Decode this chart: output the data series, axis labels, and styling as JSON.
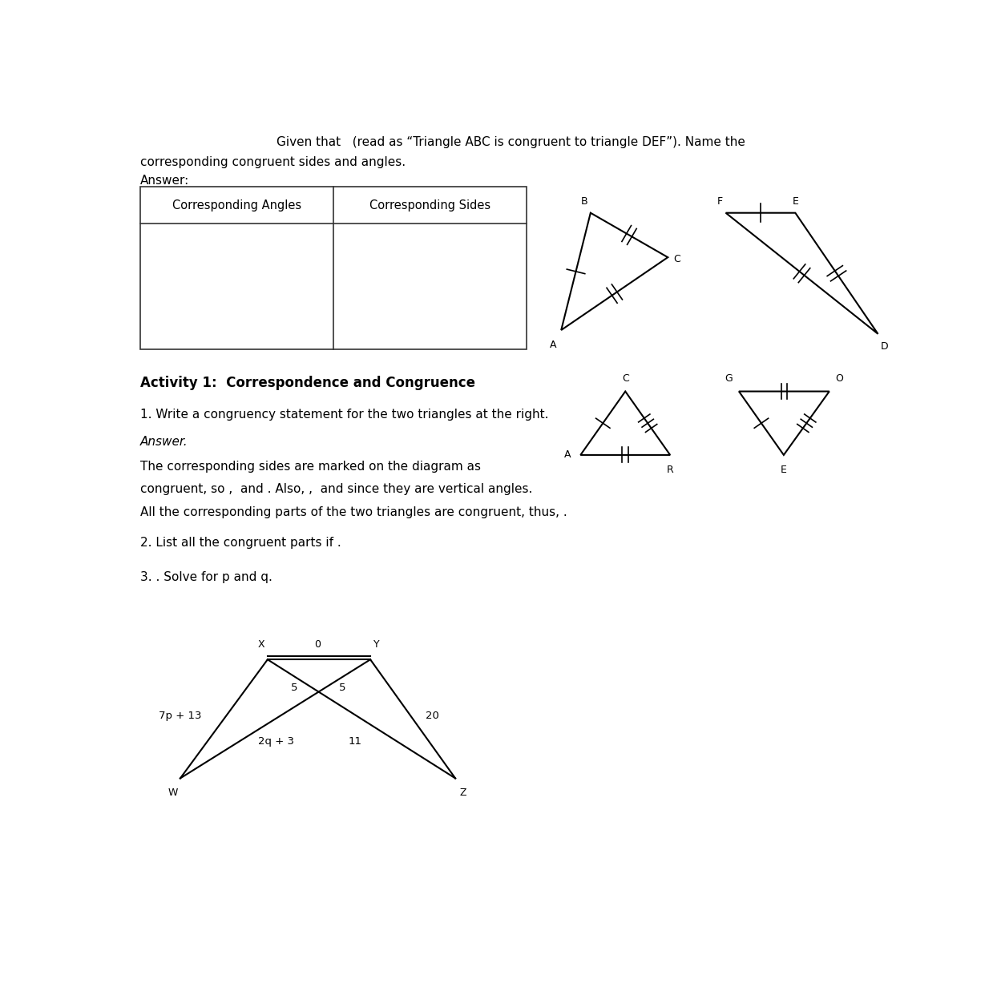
{
  "bg_color": "#ffffff",
  "text_color": "#000000",
  "intro_text_line1": "Given that   (read as “Triangle ABC is congruent to triangle DEF”). Name the",
  "intro_text_line2": "corresponding congruent sides and angles.",
  "answer_label": "Answer:",
  "table_headers": [
    "Corresponding Angles",
    "Corresponding Sides"
  ],
  "activity_title": "Activity 1:  Correspondence and Congruence",
  "q1_text": "1. Write a congruency statement for the two triangles at the right.",
  "q1_answer_label": "Answer.",
  "q1_body_line1": "The corresponding sides are marked on the diagram as",
  "q1_body_line2": "congruent, so ,  and . Also, ,  and since they are vertical angles.",
  "q1_body_line3": "All the corresponding parts of the two triangles are congruent, thus, .",
  "q2_text": "2. List all the congruent parts if .",
  "q3_text": "3. . Solve for p and q."
}
